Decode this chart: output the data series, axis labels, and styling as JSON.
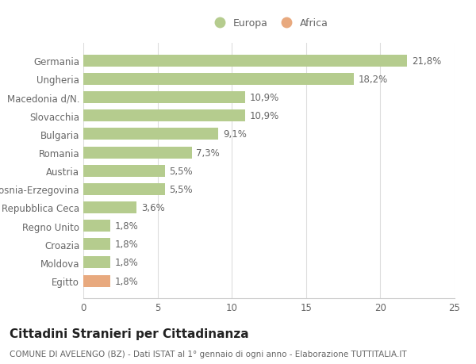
{
  "categories": [
    "Egitto",
    "Moldova",
    "Croazia",
    "Regno Unito",
    "Repubblica Ceca",
    "Bosnia-Erzegovina",
    "Austria",
    "Romania",
    "Bulgaria",
    "Slovacchia",
    "Macedonia d/N.",
    "Ungheria",
    "Germania"
  ],
  "values": [
    1.8,
    1.8,
    1.8,
    1.8,
    3.6,
    5.5,
    5.5,
    7.3,
    9.1,
    10.9,
    10.9,
    18.2,
    21.8
  ],
  "labels": [
    "1,8%",
    "1,8%",
    "1,8%",
    "1,8%",
    "3,6%",
    "5,5%",
    "5,5%",
    "7,3%",
    "9,1%",
    "10,9%",
    "10,9%",
    "18,2%",
    "21,8%"
  ],
  "colors": [
    "#e8a97e",
    "#b5cc8e",
    "#b5cc8e",
    "#b5cc8e",
    "#b5cc8e",
    "#b5cc8e",
    "#b5cc8e",
    "#b5cc8e",
    "#b5cc8e",
    "#b5cc8e",
    "#b5cc8e",
    "#b5cc8e",
    "#b5cc8e"
  ],
  "europa_color": "#b5cc8e",
  "africa_color": "#e8a97e",
  "background_color": "#ffffff",
  "xlim": [
    0,
    25
  ],
  "xticks": [
    0,
    5,
    10,
    15,
    20,
    25
  ],
  "title": "Cittadini Stranieri per Cittadinanza",
  "subtitle": "COMUNE DI AVELENGO (BZ) - Dati ISTAT al 1° gennaio di ogni anno - Elaborazione TUTTITALIA.IT",
  "legend_europa": "Europa",
  "legend_africa": "Africa",
  "label_fontsize": 8.5,
  "tick_fontsize": 8.5,
  "title_fontsize": 11,
  "subtitle_fontsize": 7.5,
  "bar_height": 0.65
}
